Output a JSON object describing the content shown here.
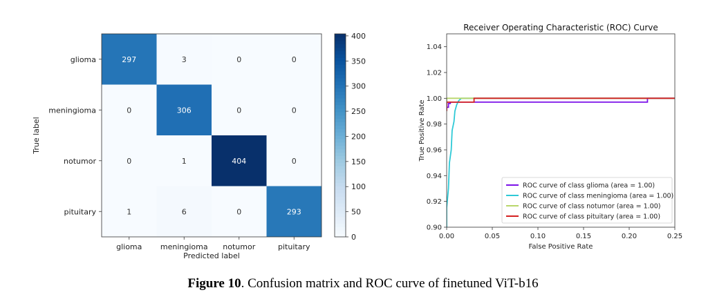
{
  "chart_data": [
    {
      "type": "heatmap",
      "title": "",
      "xlabel": "Predicted label",
      "ylabel": "True label",
      "x_categories": [
        "glioma",
        "meningioma",
        "notumor",
        "pituitary"
      ],
      "y_categories": [
        "glioma",
        "meningioma",
        "notumor",
        "pituitary"
      ],
      "values": [
        [
          297,
          3,
          0,
          0
        ],
        [
          0,
          306,
          0,
          0
        ],
        [
          0,
          1,
          404,
          0
        ],
        [
          1,
          6,
          0,
          293
        ]
      ],
      "colorbar": {
        "min": 0,
        "max": 404,
        "ticks": [
          0,
          50,
          100,
          150,
          200,
          250,
          300,
          350,
          400
        ],
        "colormap": "Blues"
      },
      "colors": {
        "low": "#f7fbff",
        "high": "#08306b"
      }
    },
    {
      "type": "line",
      "title": "Receiver Operating Characteristic (ROC) Curve",
      "xlabel": "False Positive Rate",
      "ylabel": "True Positive Rate",
      "xlim": [
        0.0,
        0.25
      ],
      "ylim": [
        0.9,
        1.05
      ],
      "xticks": [
        "0.00",
        "0.05",
        "0.10",
        "0.15",
        "0.20",
        "0.25"
      ],
      "yticks": [
        "0.90",
        "0.92",
        "0.94",
        "0.96",
        "0.98",
        "1.00",
        "1.02",
        "1.04"
      ],
      "grid": false,
      "legend_position": "lower-right",
      "series": [
        {
          "name": "ROC curve of class glioma (area = 1.00)",
          "color": "#7b10e8",
          "x": [
            0,
            0.0,
            0.002,
            0.002,
            0.004,
            0.004,
            0.22,
            0.22,
            0.25
          ],
          "y": [
            0.991,
            0.993,
            0.993,
            0.996,
            0.996,
            0.997,
            0.997,
            1.0,
            1.0
          ]
        },
        {
          "name": "ROC curve of class meningioma (area = 1.00)",
          "color": "#2ec9d6",
          "x": [
            0.0,
            0.0,
            0.002,
            0.003,
            0.005,
            0.006,
            0.008,
            0.009,
            0.011,
            0.013,
            0.016,
            0.25
          ],
          "y": [
            0.9,
            0.915,
            0.93,
            0.95,
            0.96,
            0.975,
            0.982,
            0.99,
            0.995,
            0.998,
            1.0,
            1.0
          ]
        },
        {
          "name": "ROC curve of class notumor (area = 1.00)",
          "color": "#b8d66a",
          "x": [
            0.0,
            0.0,
            0.003,
            0.25
          ],
          "y": [
            0.995,
            1.0,
            1.0,
            1.0
          ]
        },
        {
          "name": "ROC curve of class pituitary (area = 1.00)",
          "color": "#d42020",
          "x": [
            0.0,
            0.0,
            0.03,
            0.03,
            0.25
          ],
          "y": [
            0.99,
            0.997,
            0.997,
            1.0,
            1.0
          ]
        }
      ]
    }
  ],
  "caption": {
    "label": "Figure 10",
    "text": ". Confusion matrix and ROC curve of finetuned ViT-b16"
  }
}
